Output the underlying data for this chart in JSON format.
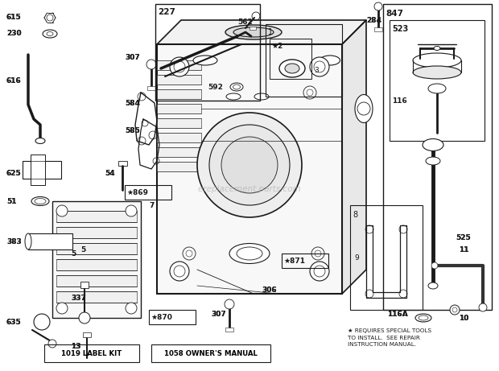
{
  "bg_color": "#f0f0f0",
  "line_color": "#1a1a1a",
  "watermark": "ereplacement parts.com",
  "label_kit_text": "1019 LABEL KIT",
  "owners_manual_text": "1058 OWNER'S MANUAL",
  "special_tools_text": "REQUIRES SPECIAL TOOLS\nTO INSTALL.  SEE REPAIR\nINSTRUCTION MANUAL.",
  "font_size_labels": 6.5,
  "font_size_bottom": 6.2
}
